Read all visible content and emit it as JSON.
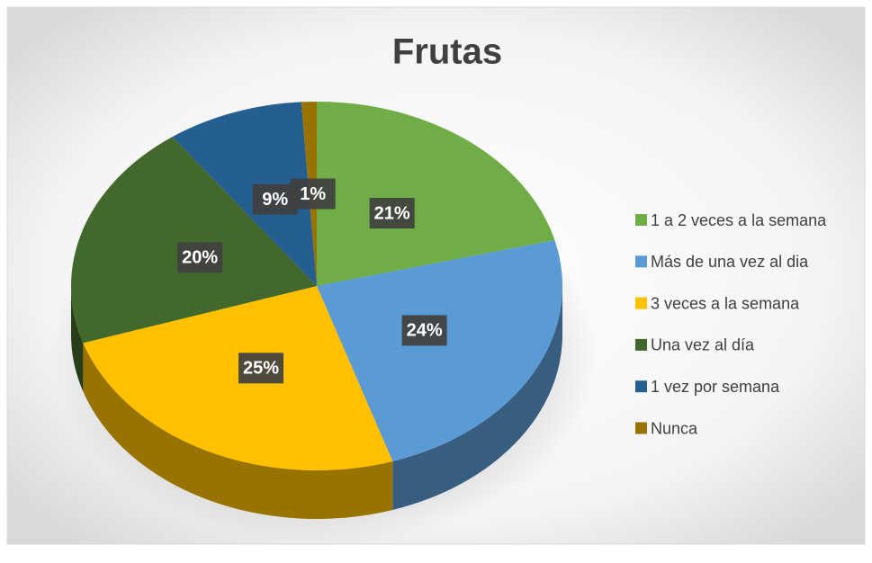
{
  "chart_data": {
    "type": "pie",
    "title": "Frutas",
    "categories": [
      "1 a 2 veces a la semana",
      "Más de una vez al dia",
      "3 veces a la semana",
      "Una vez al día",
      "1 vez por semana",
      "Nunca"
    ],
    "values": [
      21,
      24,
      25,
      20,
      9,
      1
    ],
    "value_labels": [
      "21%",
      "24%",
      "25%",
      "20%",
      "9%",
      "1%"
    ],
    "colors": [
      "#70ad47",
      "#5b9bd5",
      "#ffc000",
      "#43682b",
      "#255e91",
      "#997300"
    ],
    "legend": "right"
  }
}
